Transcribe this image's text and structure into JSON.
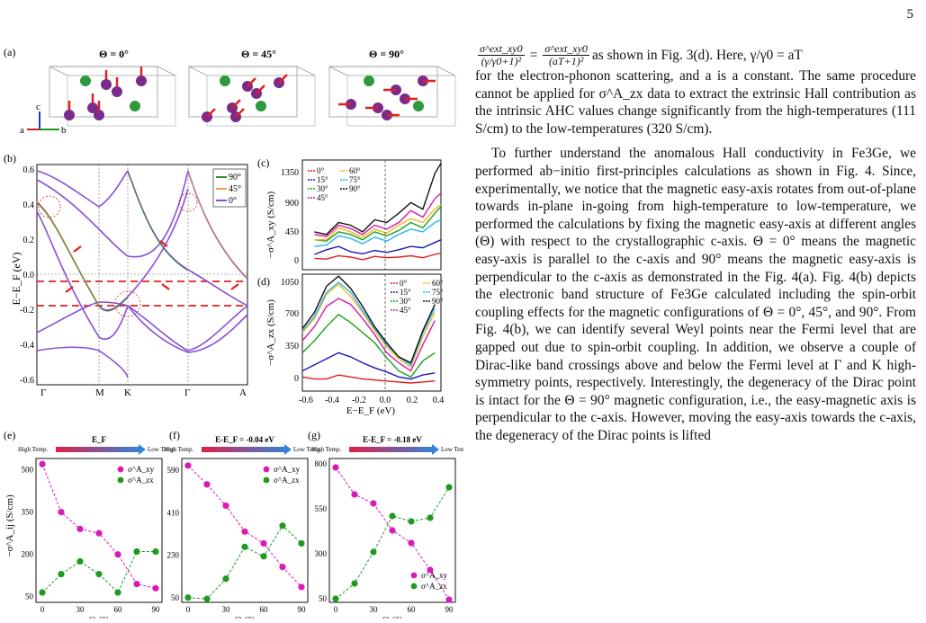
{
  "page_number": "5",
  "figure": {
    "panel_a": {
      "label": "(a)",
      "titles": [
        "Θ = 0°",
        "Θ = 45°",
        "Θ = 90°"
      ],
      "axes": {
        "c": "c",
        "a": "a",
        "b": "b"
      }
    },
    "panel_b": {
      "label": "(b)",
      "ylabel": "E−E_F (eV)",
      "yticks": [
        "0.6",
        "0.4",
        "0.2",
        "0.0",
        "-0.2",
        "-0.4",
        "-0.6"
      ],
      "kpoints": [
        "Γ",
        "M",
        "K",
        "Γ",
        "A"
      ],
      "legend": [
        "90°",
        "45°",
        "0°"
      ],
      "legend_colors": [
        "#2e8b2e",
        "#e8a04a",
        "#8a4fd6"
      ]
    },
    "panel_c": {
      "label": "(c)",
      "ylabel": "−σ^A_xy (S/cm)",
      "yticks": [
        "1350",
        "900",
        "450",
        "0"
      ],
      "legend": [
        "0°",
        "15°",
        "30°",
        "45°",
        "60°",
        "75°",
        "90°"
      ],
      "legend_colors": [
        "#e41a1c",
        "#1a1ab0",
        "#1aa01a",
        "#d41aa8",
        "#f5b81a",
        "#29b6f6",
        "#111111"
      ]
    },
    "panel_d": {
      "label": "(d)",
      "ylabel": "−σ^A_zx (S/cm)",
      "yticks": [
        "1050",
        "700",
        "350",
        "0"
      ],
      "xticks": [
        "-0.6",
        "-0.4",
        "-0.2",
        "0.0",
        "0.2",
        "0.4"
      ],
      "xlabel": "E−E_F (eV)",
      "legend": [
        "0°",
        "15°",
        "30°",
        "45°",
        "60°",
        "75°",
        "90°"
      ]
    },
    "bottom_panels": [
      {
        "label": "(e)",
        "header": "E_F",
        "high": "High Temp.",
        "low": "Low Temp.",
        "yticks": [
          "500",
          "350",
          "200",
          "50"
        ],
        "legend": [
          "σ^A_xy",
          "σ^A_zx"
        ]
      },
      {
        "label": "(f)",
        "header": "E-E_F = -0.04 eV",
        "high": "High Temp.",
        "low": "Low Temp.",
        "yticks": [
          "590",
          "410",
          "230",
          "50"
        ],
        "legend": [
          "σ^A_xy",
          "σ^A_zx"
        ]
      },
      {
        "label": "(g)",
        "header": "E-E_F = -0.18 eV",
        "high": "High Temp.",
        "low": "Low Temp.",
        "yticks": [
          "800",
          "550",
          "300",
          "50"
        ],
        "legend": [
          "σ^A_xy",
          "σ^A_zx"
        ]
      }
    ],
    "bottom_ylabel": "−σ^A_ij (S/cm)",
    "bottom_xticks": [
      "0",
      "30",
      "60",
      "90"
    ],
    "bottom_xlabel": "Θ (°)",
    "colors": {
      "xy": "#d81bb8",
      "zx": "#1f9a1f",
      "arrow": "#e02020",
      "atom_purple": "#7a2a8a",
      "atom_green": "#2c9a3c",
      "dashed_red": "#e02020"
    }
  },
  "text": {
    "eq_num1": "σ^ext_xy0",
    "eq_den1": "(γ/γ0+1)²",
    "eq_num2": "σ^ext_xy0",
    "eq_den2": "(aT+1)²",
    "eq_tail": "as shown in Fig. 3(d). Here, γ/γ0 = aT",
    "p1_rest": "for the electron-phonon scattering, and a is a constant. The same procedure cannot be applied for σ^A_zx data to extract the extrinsic Hall contribution as the intrinsic AHC values change significantly from the high-temperatures (111 S/cm) to the low-temperatures (320 S/cm).",
    "p2": "To further understand the anomalous Hall conductivity in Fe3Ge, we performed ab−initio first-principles calculations as shown in Fig. 4. Since, experimentally, we notice that the magnetic easy-axis rotates from out-of-plane towards in-plane in-going from high-temperature to low-temperature, we performed the calculations by fixing the magnetic easy-axis at different angles (Θ) with respect to the crystallographic c-axis. Θ = 0° means the magnetic easy-axis is parallel to the c-axis and 90° means the magnetic easy-axis is perpendicular to the c-axis as demonstrated in the Fig. 4(a). Fig. 4(b) depicts the electronic band structure of Fe3Ge calculated including the spin-orbit coupling effects for the magnetic configurations of Θ = 0°, 45°, and 90°. From Fig. 4(b), we can identify several Weyl points near the Fermi level that are gapped out due to spin-orbit coupling. In addition, we observe a couple of Dirac-like band crossings above and below the Fermi level at Γ and K high-symmetry points, respectively. Interestingly, the degeneracy of the Dirac point is intact for the Θ = 90° magnetic configuration, i.e., the easy-magnetic axis is perpendicular to the c-axis. However, moving the easy-axis towards the c-axis, the degeneracy of the Dirac points is lifted"
  },
  "chart_data": [
    {
      "type": "line",
      "title": "(b)",
      "ylabel": "E−E_F (eV)",
      "ylim": [
        -0.6,
        0.6
      ],
      "xticks": [
        "Γ",
        "M",
        "K",
        "Γ",
        "A"
      ],
      "reference_lines_eV": [
        0.0,
        -0.04,
        -0.18
      ],
      "series": [
        {
          "name": "90°"
        },
        {
          "name": "45°"
        },
        {
          "name": "0°"
        }
      ]
    },
    {
      "type": "line",
      "title": "(c)",
      "ylabel": "−σ^A_xy (S/cm)",
      "xlim": [
        -0.7,
        0.45
      ],
      "ylim": [
        -150,
        1500
      ],
      "x": [
        -0.6,
        -0.5,
        -0.4,
        -0.3,
        -0.2,
        -0.1,
        0.0,
        0.1,
        0.2,
        0.3,
        0.4,
        0.45
      ],
      "series": [
        {
          "name": "0°",
          "values": [
            20,
            10,
            60,
            40,
            0,
            50,
            30,
            40,
            60,
            30,
            80,
            100
          ]
        },
        {
          "name": "15°",
          "values": [
            80,
            150,
            200,
            120,
            90,
            140,
            110,
            150,
            200,
            180,
            260,
            300
          ]
        },
        {
          "name": "30°",
          "values": [
            300,
            280,
            420,
            380,
            300,
            420,
            360,
            440,
            560,
            480,
            700,
            800
          ]
        },
        {
          "name": "45°",
          "values": [
            380,
            350,
            520,
            470,
            380,
            520,
            460,
            560,
            740,
            640,
            920,
            1000
          ]
        },
        {
          "name": "60°",
          "values": [
            300,
            300,
            480,
            420,
            340,
            460,
            400,
            520,
            620,
            560,
            760,
            830
          ]
        },
        {
          "name": "75°",
          "values": [
            200,
            220,
            360,
            320,
            240,
            340,
            280,
            380,
            460,
            420,
            560,
            600
          ]
        },
        {
          "name": "90°",
          "values": [
            420,
            380,
            560,
            520,
            420,
            600,
            560,
            700,
            860,
            760,
            1300,
            1450
          ]
        }
      ]
    },
    {
      "type": "line",
      "title": "(d)",
      "ylabel": "−σ^A_zx (S/cm)",
      "xlabel": "E−E_F (eV)",
      "xlim": [
        -0.7,
        0.45
      ],
      "ylim": [
        -80,
        1080
      ],
      "x": [
        -0.7,
        -0.6,
        -0.5,
        -0.4,
        -0.3,
        -0.2,
        -0.1,
        0.0,
        0.1,
        0.2,
        0.3,
        0.4
      ],
      "series": [
        {
          "name": "0°",
          "values": [
            60,
            40,
            40,
            80,
            60,
            40,
            30,
            20,
            10,
            0,
            10,
            20
          ]
        },
        {
          "name": "15°",
          "values": [
            120,
            180,
            240,
            300,
            260,
            200,
            150,
            110,
            60,
            40,
            80,
            100
          ]
        },
        {
          "name": "30°",
          "values": [
            300,
            420,
            560,
            680,
            600,
            500,
            400,
            250,
            120,
            60,
            220,
            300
          ]
        },
        {
          "name": "45°",
          "values": [
            420,
            560,
            760,
            840,
            780,
            640,
            480,
            300,
            200,
            120,
            380,
            620
          ]
        },
        {
          "name": "60°",
          "values": [
            500,
            640,
            880,
            980,
            860,
            700,
            520,
            360,
            240,
            160,
            460,
            700
          ]
        },
        {
          "name": "75°",
          "values": [
            520,
            660,
            900,
            1000,
            900,
            720,
            540,
            380,
            260,
            180,
            500,
            740
          ]
        },
        {
          "name": "90°",
          "values": [
            540,
            700,
            960,
            1060,
            940,
            760,
            560,
            400,
            260,
            200,
            520,
            780
          ]
        }
      ]
    },
    {
      "type": "scatter",
      "title": "(e) E_F",
      "xlabel": "Θ (°)",
      "ylabel": "−σ^A_ij (S/cm)",
      "x": [
        0,
        15,
        30,
        45,
        60,
        75,
        90
      ],
      "xlim": [
        -5,
        95
      ],
      "ylim": [
        30,
        540
      ],
      "series": [
        {
          "name": "σ^A_xy",
          "values": [
            520,
            350,
            290,
            275,
            200,
            95,
            80
          ]
        },
        {
          "name": "σ^A_zx",
          "values": [
            65,
            130,
            175,
            130,
            65,
            210,
            210
          ]
        }
      ]
    },
    {
      "type": "scatter",
      "title": "(f) E-E_F = -0.04 eV",
      "xlabel": "Θ (°)",
      "x": [
        0,
        15,
        30,
        45,
        60,
        75,
        90
      ],
      "xlim": [
        -5,
        95
      ],
      "ylim": [
        30,
        640
      ],
      "series": [
        {
          "name": "σ^A_xy",
          "values": [
            610,
            530,
            440,
            330,
            280,
            180,
            95
          ]
        },
        {
          "name": "σ^A_zx",
          "values": [
            50,
            45,
            130,
            265,
            225,
            355,
            280
          ]
        }
      ]
    },
    {
      "type": "scatter",
      "title": "(g) E-E_F = -0.18 eV",
      "xlabel": "Θ (°)",
      "x": [
        0,
        15,
        30,
        45,
        60,
        75,
        90
      ],
      "xlim": [
        -5,
        95
      ],
      "ylim": [
        30,
        830
      ],
      "series": [
        {
          "name": "σ^A_xy",
          "values": [
            780,
            630,
            580,
            430,
            360,
            210,
            45
          ]
        },
        {
          "name": "σ^A_zx",
          "values": [
            50,
            135,
            310,
            510,
            480,
            500,
            670
          ]
        }
      ]
    }
  ]
}
